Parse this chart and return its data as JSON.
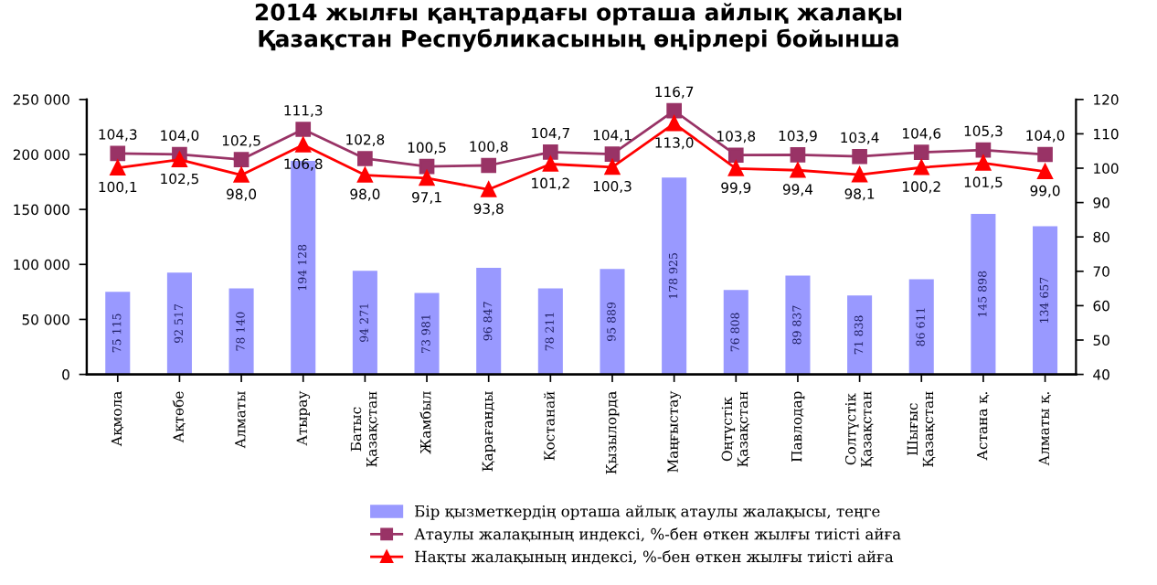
{
  "chart_data": {
    "type": "bar",
    "title": "2014 жылғы қаңтардағы орташа айлық жалақы\nҚазақстан Республикасының өңірлері бойынша",
    "categories": [
      "Ақмола",
      "Ақтөбе",
      "Алматы",
      "Атырау",
      "Батыс\nҚазақстан",
      "Жамбыл",
      "Қарағанды",
      "Қостанай",
      "Қызылорда",
      "Маңғыстау",
      "Оңтүстік\nҚазақстан",
      "Павлодар",
      "Солтүстік\nҚазақстан",
      "Шығыс\nҚазақстан",
      "Астана қ.",
      "Алматы қ."
    ],
    "series": [
      {
        "name": "Бір қызметкердің орташа айлық атаулы жалақысы, теңге",
        "color": "#9999ff",
        "values": [
          75115,
          92517,
          78140,
          194128,
          94271,
          73981,
          96847,
          78211,
          95889,
          178925,
          76808,
          89837,
          71838,
          86611,
          145898,
          134657
        ],
        "value_labels": [
          "75 115",
          "92 517",
          "78 140",
          "194 128",
          "94 271",
          "73 981",
          "96 847",
          "78 211",
          "95 889",
          "178 925",
          "76 808",
          "89 837",
          "71 838",
          "86 611",
          "145 898",
          "134 657"
        ]
      },
      {
        "name": "Атаулы жалақының индексі, %-бен өткен жылғы тиісті айға",
        "type": "line",
        "axis": "y2",
        "color": "#993366",
        "marker": "square",
        "values": [
          104.3,
          104.0,
          102.5,
          111.3,
          102.8,
          100.5,
          100.8,
          104.7,
          104.1,
          116.7,
          103.8,
          103.9,
          103.4,
          104.6,
          105.3,
          104.0
        ],
        "value_labels": [
          "104,3",
          "104,0",
          "102,5",
          "111,3",
          "102,8",
          "100,5",
          "100,8",
          "104,7",
          "104,1",
          "116,7",
          "103,8",
          "103,9",
          "103,4",
          "104,6",
          "105,3",
          "104,0"
        ]
      },
      {
        "name": "Нақты жалақының индексі, %-бен өткен жылғы тиісті айға",
        "type": "line",
        "axis": "y2",
        "color": "#ff0000",
        "marker": "triangle",
        "values": [
          100.1,
          102.5,
          98.0,
          106.8,
          98.0,
          97.1,
          93.8,
          101.2,
          100.3,
          113.0,
          99.9,
          99.4,
          98.1,
          100.2,
          101.5,
          99.0
        ],
        "value_labels": [
          "100,1",
          "102,5",
          "98,0",
          "106,8",
          "98,0",
          "97,1",
          "93,8",
          "101,2",
          "100,3",
          "113,0",
          "99,9",
          "99,4",
          "98,1",
          "100,2",
          "101,5",
          "99,0"
        ]
      }
    ],
    "ylim": [
      0,
      250000
    ],
    "yticks": [
      {
        "value": 0,
        "label": "0"
      },
      {
        "value": 50000,
        "label": "50 000"
      },
      {
        "value": 100000,
        "label": "100 000"
      },
      {
        "value": 150000,
        "label": "150 000"
      },
      {
        "value": 200000,
        "label": "200 000"
      },
      {
        "value": 250000,
        "label": "250 000"
      }
    ],
    "y2lim": [
      40,
      120
    ],
    "y2ticks": [
      40,
      50,
      60,
      70,
      80,
      90,
      100,
      110,
      120
    ],
    "grid": false,
    "legend": "bottom"
  }
}
